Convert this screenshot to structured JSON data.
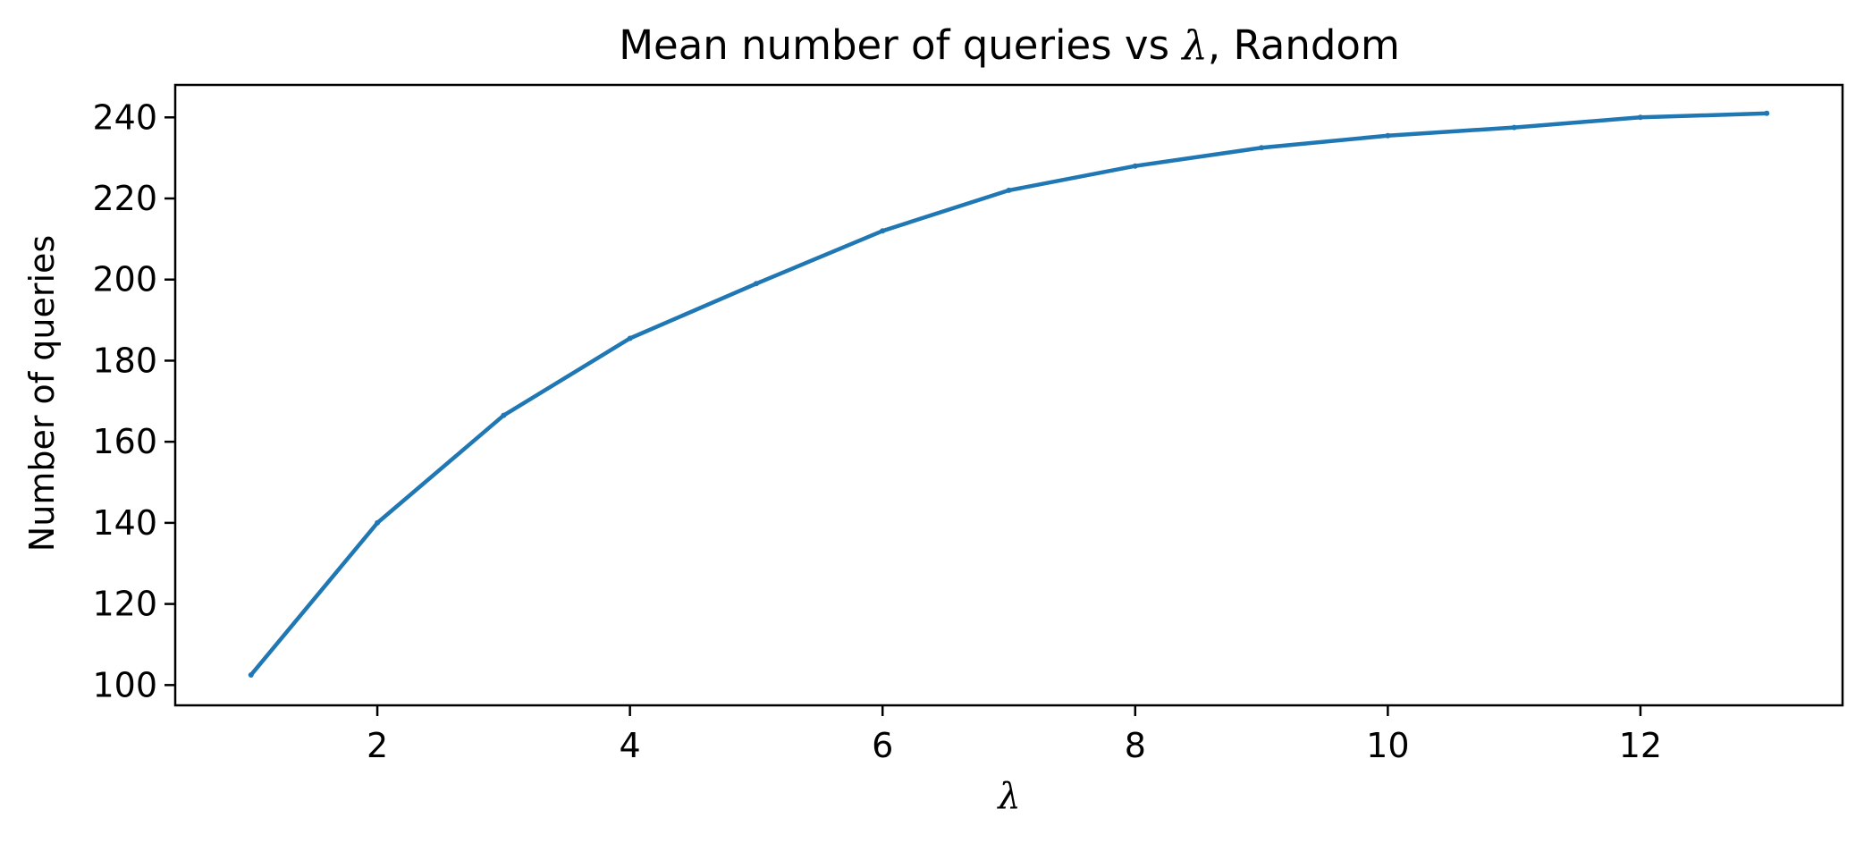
{
  "chart_data": {
    "type": "line",
    "title_main": "Mean number of queries vs ",
    "title_lambda": "λ",
    "title_suffix": ", Random",
    "xlabel": "λ",
    "ylabel": "Number of queries",
    "x": [
      1,
      2,
      3,
      4,
      5,
      6,
      7,
      8,
      9,
      10,
      11,
      12,
      13
    ],
    "series": [
      {
        "values": [
          102.5,
          140.0,
          166.5,
          185.5,
          199.0,
          212.0,
          222.0,
          228.0,
          232.5,
          235.5,
          237.5,
          240.0,
          241.0
        ],
        "color": "#1f77b4"
      }
    ],
    "xlim": [
      0.4,
      13.6
    ],
    "ylim": [
      95,
      248
    ],
    "xticks": [
      2,
      4,
      6,
      8,
      10,
      12
    ],
    "yticks": [
      100,
      120,
      140,
      160,
      180,
      200,
      220,
      240
    ],
    "grid": false,
    "legend": "none"
  }
}
